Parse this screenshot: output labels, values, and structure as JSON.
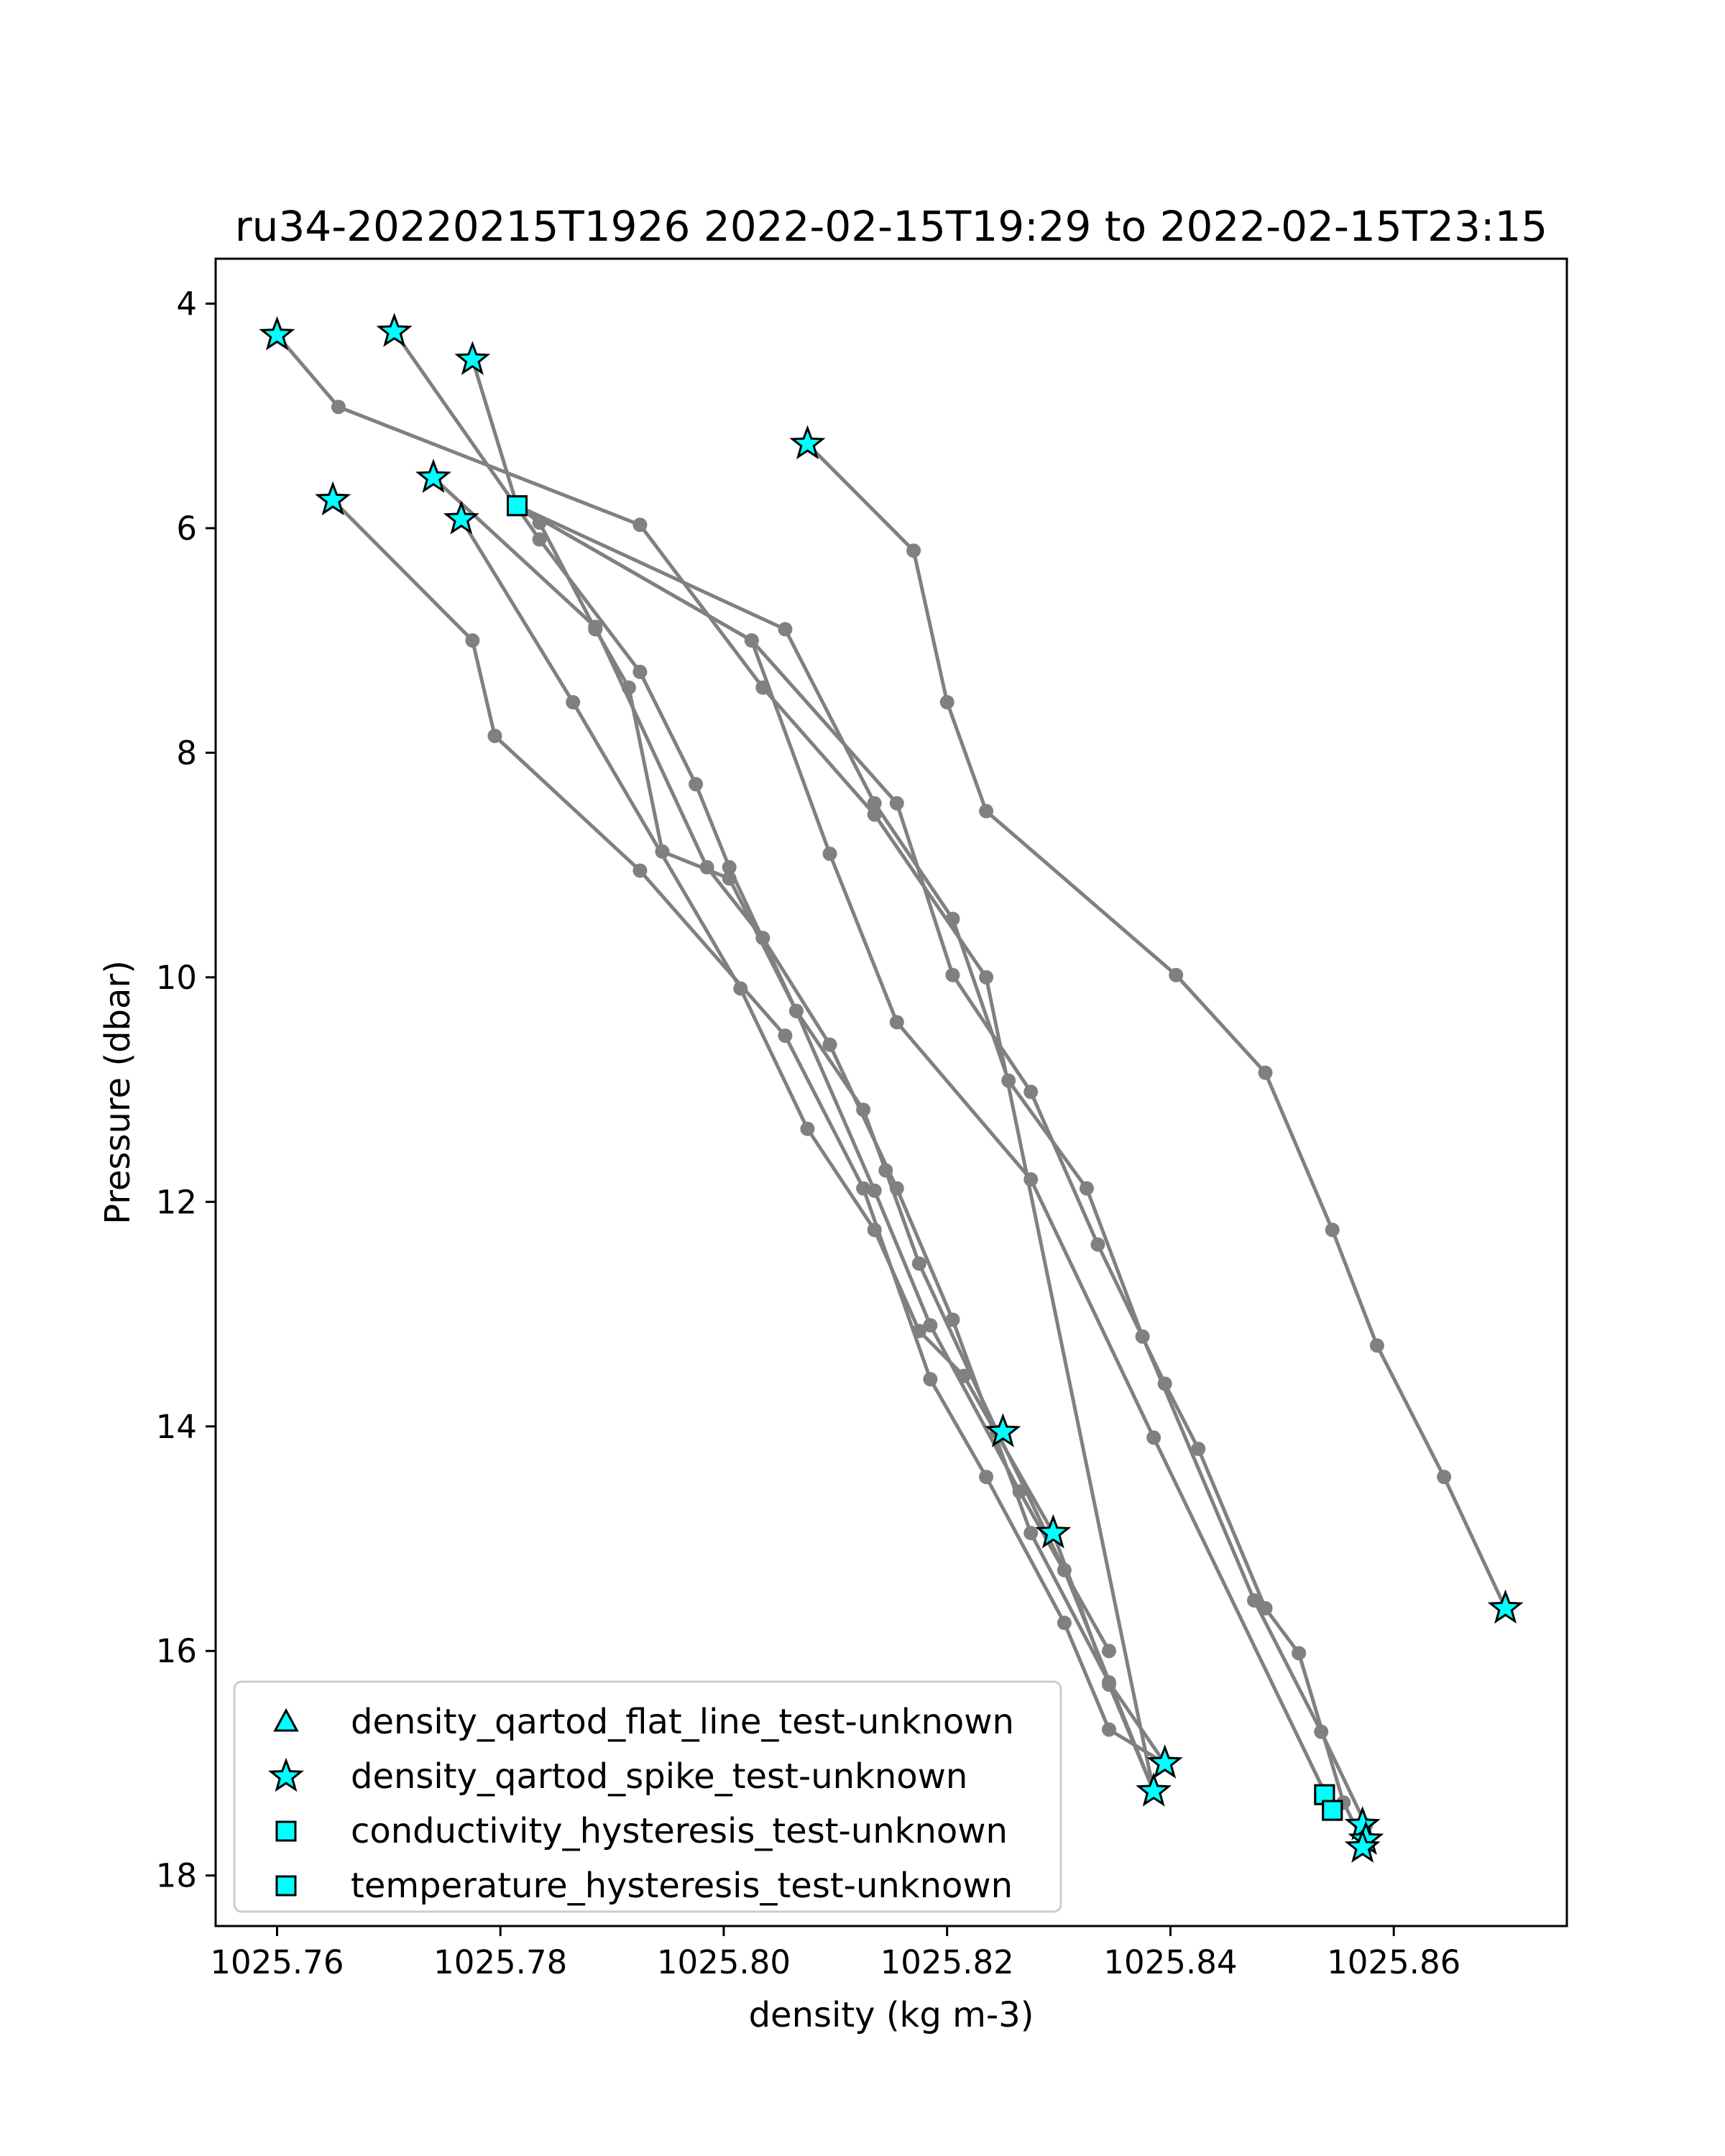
{
  "chart_data": {
    "type": "scatter",
    "title": "ru34-20220215T1926 2022-02-15T19:29 to 2022-02-15T23:15",
    "xlabel": "density (kg m-3)",
    "ylabel": "Pressure (dbar)",
    "xlim": [
      1025.7545,
      1025.8755
    ],
    "ylim": [
      18.45,
      3.6
    ],
    "y_inverted": true,
    "grid": false,
    "legend_position": "lower-left",
    "x_ticks": [
      1025.76,
      1025.78,
      1025.8,
      1025.82,
      1025.84,
      1025.86
    ],
    "x_tick_labels": [
      "1025.76",
      "1025.78",
      "1025.80",
      "1025.82",
      "1025.84",
      "1025.86"
    ],
    "y_ticks": [
      4,
      6,
      8,
      10,
      12,
      14,
      16,
      18
    ],
    "y_tick_labels": [
      "4",
      "6",
      "8",
      "10",
      "12",
      "14",
      "16",
      "18"
    ],
    "colors": {
      "line": "#808080",
      "marker_fill": "#00ffff",
      "marker_edge": "#000000"
    },
    "profiles": [
      {
        "x": [
          1025.76,
          1025.7655,
          1025.7925,
          1025.8035,
          1025.8135,
          1025.8235,
          1025.8385
        ],
        "y": [
          4.28,
          4.92,
          5.97,
          7.42,
          8.55,
          10.0,
          17.25
        ]
      },
      {
        "x": [
          1025.7705,
          1025.7835,
          1025.7925,
          1025.7975,
          1025.8005,
          1025.8065,
          1025.8125,
          1025.8145,
          1025.8175,
          1025.8245,
          1025.8305,
          1025.8385
        ],
        "y": [
          4.25,
          6.1,
          7.28,
          8.28,
          9.02,
          10.3,
          11.18,
          11.72,
          12.55,
          14.05,
          15.28,
          17.25
        ]
      },
      {
        "x": [
          1025.7775,
          1025.7815,
          1025.7835,
          1025.7885,
          1025.7915,
          1025.7945,
          1025.8005,
          1025.8065,
          1025.8135,
          1025.8185,
          1025.8265,
          1025.8345
        ],
        "y": [
          4.5,
          5.8,
          5.95,
          6.9,
          7.42,
          8.88,
          9.12,
          10.3,
          11.9,
          13.1,
          14.58,
          16.0
        ]
      },
      {
        "x": [
          1025.8075,
          1025.817,
          1025.82,
          1025.8235,
          1025.8405,
          1025.8485,
          1025.8545,
          1025.8585,
          1025.8645,
          1025.87
        ],
        "y": [
          5.25,
          6.2,
          7.55,
          8.52,
          9.98,
          10.85,
          12.25,
          13.28,
          14.45,
          15.62
        ]
      },
      {
        "x": [
          1025.765,
          1025.7775,
          1025.7795,
          1025.7925,
          1025.8055,
          1025.8125,
          1025.8185,
          1025.8235,
          1025.8305,
          1025.8345,
          1025.8395
        ],
        "y": [
          5.75,
          7.0,
          7.85,
          9.05,
          10.52,
          11.88,
          13.58,
          14.45,
          15.75,
          16.7,
          17.0
        ]
      },
      {
        "x": [
          1025.774,
          1025.7885,
          1025.7985,
          1025.8035,
          1025.8095,
          1025.8155,
          1025.8205,
          1025.8275,
          1025.8345,
          1025.8395
        ],
        "y": [
          5.55,
          6.88,
          9.02,
          9.65,
          10.6,
          11.88,
          13.05,
          14.95,
          16.28,
          17.0
        ]
      },
      {
        "x": [
          1025.7765,
          1025.7865,
          1025.8015,
          1025.8075,
          1025.8135,
          1025.8175,
          1025.8215,
          1025.8295,
          1025.8345,
          1025.8385
        ],
        "y": [
          5.92,
          7.55,
          10.1,
          11.35,
          12.25,
          13.15,
          13.55,
          14.95,
          16.3,
          17.25
        ]
      },
      {
        "x": [
          1025.7815,
          1025.8055,
          1025.8135,
          1025.8205,
          1025.8255,
          1025.8325,
          1025.8375,
          1025.8475,
          1025.8535,
          1025.8575
        ],
        "y": [
          5.8,
          6.9,
          8.45,
          9.48,
          10.92,
          11.88,
          13.2,
          15.55,
          16.72,
          17.55
        ]
      },
      {
        "x": [
          1025.7815,
          1025.8025,
          1025.8155,
          1025.8205,
          1025.8275,
          1025.8335,
          1025.8395,
          1025.8425,
          1025.8485,
          1025.8515,
          1025.8555,
          1025.8575
        ],
        "y": [
          5.8,
          7.0,
          8.45,
          9.98,
          11.02,
          12.38,
          13.62,
          14.2,
          15.62,
          16.02,
          17.35,
          17.75
        ]
      },
      {
        "x": [
          1025.7815,
          1025.8025,
          1025.8095,
          1025.8155,
          1025.8275,
          1025.8385,
          1025.8545
        ],
        "y": [
          5.8,
          7.0,
          8.9,
          10.4,
          11.8,
          14.1,
          17.4
        ]
      }
    ],
    "flags": {
      "density_qartod_spike_test-unknown": [
        [
          1025.76,
          4.28
        ],
        [
          1025.7705,
          4.25
        ],
        [
          1025.7775,
          4.5
        ],
        [
          1025.8075,
          5.25
        ],
        [
          1025.765,
          5.75
        ],
        [
          1025.774,
          5.55
        ],
        [
          1025.7765,
          5.92
        ],
        [
          1025.825,
          14.05
        ],
        [
          1025.8295,
          14.95
        ],
        [
          1025.8395,
          17.0
        ],
        [
          1025.8385,
          17.25
        ],
        [
          1025.87,
          15.62
        ],
        [
          1025.8572,
          17.55
        ],
        [
          1025.8575,
          17.68
        ],
        [
          1025.8572,
          17.75
        ]
      ],
      "conductivity_hysteresis_test-unknown": [
        [
          1025.7815,
          5.8
        ],
        [
          1025.8538,
          17.28
        ],
        [
          1025.8545,
          17.42
        ]
      ],
      "temperature_hysteresis_test-unknown": [
        [
          1025.7815,
          5.8
        ],
        [
          1025.8538,
          17.28
        ],
        [
          1025.8545,
          17.42
        ]
      ],
      "density_qartod_flat_line_test-unknown": []
    },
    "legend": [
      {
        "label": "density_qartod_flat_line_test-unknown",
        "marker": "triangle"
      },
      {
        "label": "density_qartod_spike_test-unknown",
        "marker": "star"
      },
      {
        "label": "conductivity_hysteresis_test-unknown",
        "marker": "square"
      },
      {
        "label": "temperature_hysteresis_test-unknown",
        "marker": "square"
      }
    ]
  }
}
